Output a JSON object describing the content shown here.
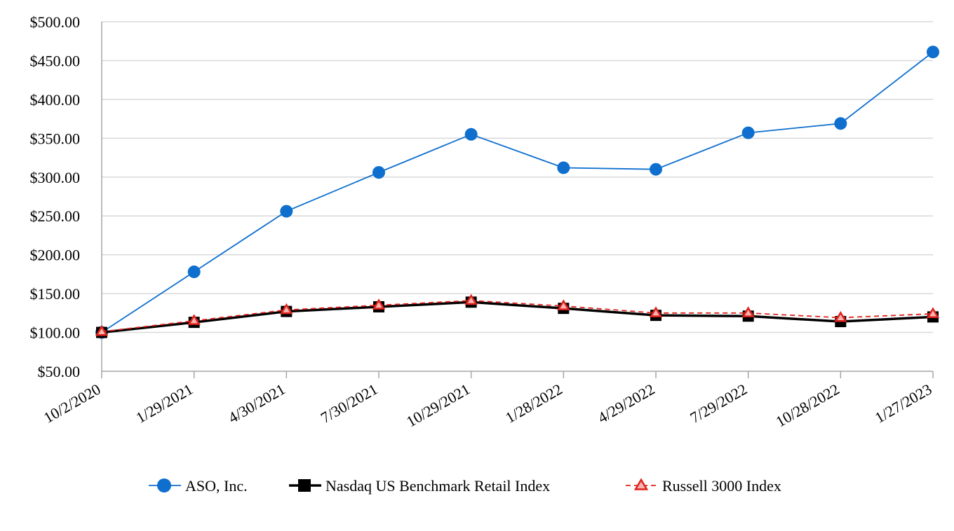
{
  "chart_data": {
    "type": "line",
    "title": "",
    "xlabel": "",
    "ylabel": "",
    "categories": [
      "10/2/2020",
      "1/29/2021",
      "4/30/2021",
      "7/30/2021",
      "10/29/2021",
      "1/28/2022",
      "4/29/2022",
      "7/29/2022",
      "10/28/2022",
      "1/27/2023"
    ],
    "y_ticks": [
      "$50.00",
      "$100.00",
      "$150.00",
      "$200.00",
      "$250.00",
      "$300.00",
      "$350.00",
      "$400.00",
      "$450.00",
      "$500.00"
    ],
    "ylim": [
      50,
      500
    ],
    "grid": true,
    "legend_position": "bottom",
    "series": [
      {
        "name": "ASO, Inc.",
        "color": "#0f6fce",
        "marker": "circle",
        "line_style": "solid",
        "values": [
          100,
          178,
          256,
          306,
          355,
          312,
          310,
          357,
          369,
          461
        ]
      },
      {
        "name": "Nasdaq US Benchmark Retail Index",
        "color": "#000000",
        "marker": "square",
        "line_style": "solid",
        "values": [
          100,
          113,
          127,
          133,
          139,
          131,
          122,
          121,
          114,
          120
        ]
      },
      {
        "name": "Russell 3000 Index",
        "color": "#e0221c",
        "marker": "triangle",
        "line_style": "dashed",
        "values": [
          101,
          115,
          129,
          135,
          141,
          134,
          125,
          125,
          119,
          124
        ]
      }
    ]
  }
}
